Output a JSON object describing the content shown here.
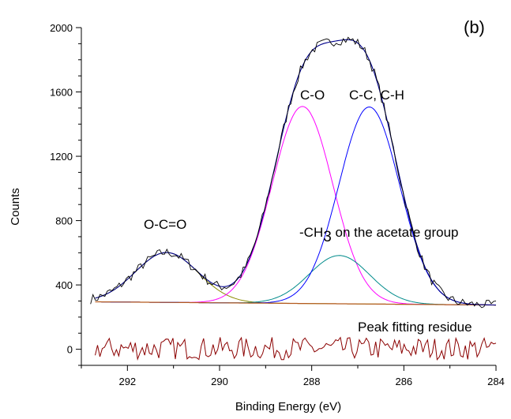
{
  "chart_data": {
    "type": "line",
    "panel_label": "(b)",
    "xlabel": "Binding Energy (eV)",
    "ylabel": "Counts",
    "xlim": [
      293.0,
      284.0
    ],
    "ylim": [
      -100,
      2000
    ],
    "x_reversed": true,
    "grid": false,
    "x_ticks": [
      292,
      290,
      288,
      286,
      284
    ],
    "y_ticks": [
      0,
      400,
      800,
      1200,
      1600,
      2000
    ],
    "annotations": {
      "oco": "O-C=O",
      "co": "C-O",
      "cc": "C-C, C-H",
      "ch3_prefix": "-CH",
      "ch3_sub": "3",
      "ch3_suffix": " on the acetate group",
      "residue": "Peak fitting residue"
    },
    "baseline": {
      "x": [
        292.7,
        284.0
      ],
      "y": [
        295,
        275
      ]
    },
    "peaks": [
      {
        "label": "O-C=O",
        "center": 291.15,
        "height": 310,
        "fwhm": 1.6
      },
      {
        "label": "C-O",
        "center": 288.2,
        "height": 1225,
        "fwhm": 1.55
      },
      {
        "label": "-CH3",
        "center": 287.4,
        "height": 300,
        "fwhm": 1.55
      },
      {
        "label": "C-C, C-H",
        "center": 286.75,
        "height": 1225,
        "fwhm": 1.55
      }
    ],
    "residue_range": [
      -65,
      75
    ],
    "x_range_data": [
      292.7,
      284.0
    ],
    "colors": {
      "measured": "#000000",
      "envelope": "#00008B",
      "oco": "#8B8B00",
      "co": "#FF00FF",
      "ch3": "#008B8B",
      "cc": "#0000FF",
      "baseline": "#B45A1E",
      "residue": "#8B0000"
    }
  }
}
